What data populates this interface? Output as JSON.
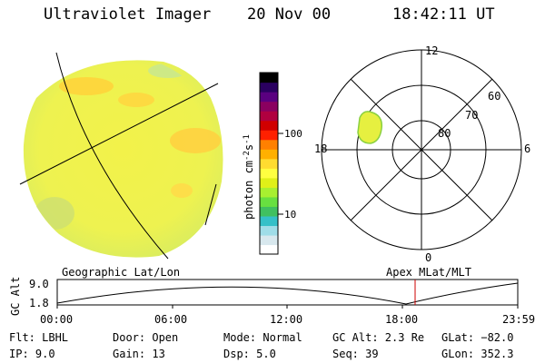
{
  "header": {
    "title": "Ultraviolet Imager",
    "date": "20 Nov 00",
    "time": "18:42:11 UT"
  },
  "colorbar": {
    "label": "photon cm",
    "sup1": "-2",
    "mid": "s",
    "sup2": "-1",
    "ticks": [
      "100",
      "10"
    ],
    "colors": [
      "#ffffff",
      "#d8e8ee",
      "#9fdde8",
      "#34c0c8",
      "#40c060",
      "#68e040",
      "#a8f030",
      "#e0f018",
      "#ffff40",
      "#ffdc30",
      "#ffb000",
      "#ff8000",
      "#ff2000",
      "#d00000",
      "#b00040",
      "#8a0060",
      "#5a0080",
      "#2a0060",
      "#000000"
    ]
  },
  "polar": {
    "mlt_labels": {
      "top": "12",
      "left": "18",
      "right": "6",
      "bottom": "0"
    },
    "lat_labels": [
      "60",
      "70",
      "80"
    ]
  },
  "timeline": {
    "gc_alt_label": "GC Alt",
    "ymax": "9.0",
    "ymin": "1.8",
    "left_title": "Geographic Lat/Lon",
    "right_title": "Apex MLat/MLT",
    "ticks": [
      "00:00",
      "06:00",
      "12:00",
      "18:00",
      "23:59"
    ],
    "marker_color": "#cc0000"
  },
  "info": {
    "flt": "Flt: LBHL",
    "ip": "IP:  9.0",
    "door": "Door: Open",
    "gain": "Gain: 13",
    "mode": "Mode: Normal",
    "dsp": "Dsp:    5.0",
    "gc_alt": "GC Alt: 2.3 Re",
    "seq": "Seq: 39",
    "glat": "GLat: −82.0",
    "glon": "GLon: 352.3"
  }
}
